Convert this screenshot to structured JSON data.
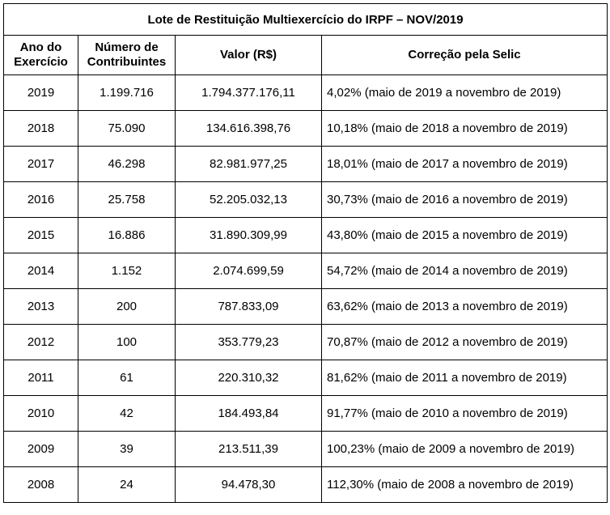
{
  "table": {
    "title": "Lote de Restituição Multiexercício do IRPF – NOV/2019",
    "header": [
      "Ano do Exercício",
      "Número de Contribuintes",
      "Valor (R$)",
      "Correção pela Selic"
    ],
    "rows": [
      [
        "2019",
        "1.199.716",
        "1.794.377.176,11",
        "4,02% (maio de 2019 a novembro de 2019)"
      ],
      [
        "2018",
        "75.090",
        "134.616.398,76",
        "10,18% (maio de 2018 a novembro de 2019)"
      ],
      [
        "2017",
        "46.298",
        "82.981.977,25",
        "18,01% (maio de 2017 a novembro de 2019)"
      ],
      [
        "2016",
        "25.758",
        "52.205.032,13",
        "30,73% (maio de 2016 a novembro de 2019)"
      ],
      [
        "2015",
        "16.886",
        "31.890.309,99",
        "43,80% (maio de 2015 a novembro de 2019)"
      ],
      [
        "2014",
        "1.152",
        "2.074.699,59",
        "54,72% (maio de 2014 a novembro de 2019)"
      ],
      [
        "2013",
        "200",
        "787.833,09",
        "63,62% (maio de 2013 a novembro de 2019)"
      ],
      [
        "2012",
        "100",
        "353.779,23",
        "70,87% (maio de 2012 a novembro de 2019)"
      ],
      [
        "2011",
        "61",
        "220.310,32",
        "81,62% (maio de 2011 a novembro de 2019)"
      ],
      [
        "2010",
        "42",
        "184.493,84",
        "91,77% (maio de 2010 a novembro de 2019)"
      ],
      [
        "2009",
        "39",
        "213.511,39",
        "100,23% (maio de 2009 a novembro de 2019)"
      ],
      [
        "2008",
        "24",
        "94.478,30",
        "112,30% (maio de 2008 a novembro de 2019)"
      ]
    ]
  }
}
